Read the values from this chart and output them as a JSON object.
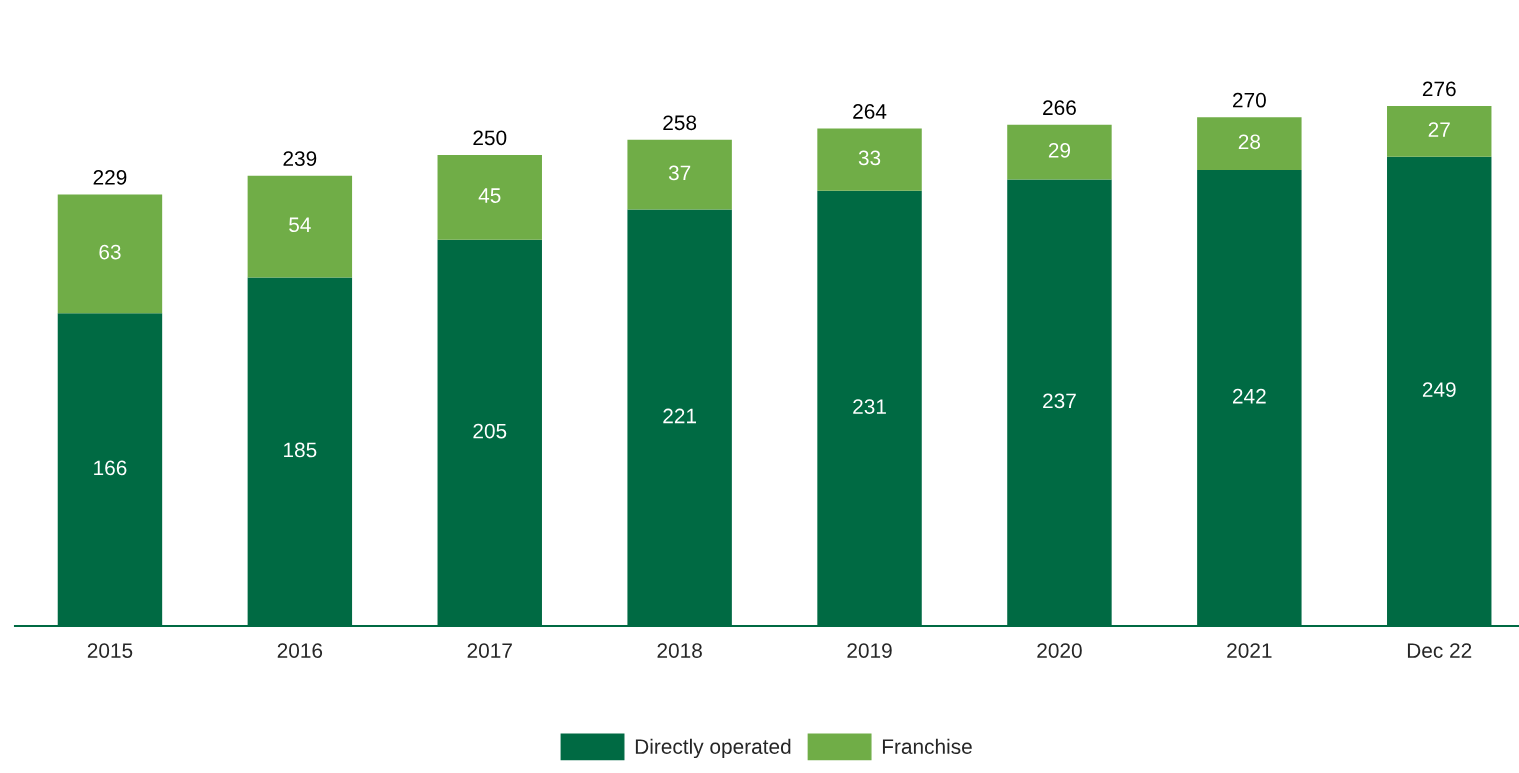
{
  "chart_data": {
    "type": "bar",
    "stacked": true,
    "data_labels": true,
    "legend": "bottom",
    "grid": false,
    "categories": [
      "2015",
      "2016",
      "2017",
      "2018",
      "2019",
      "2020",
      "2021",
      "Dec 22"
    ],
    "series": [
      {
        "name": "Directly operated",
        "color": "#006a43",
        "values": [
          166,
          185,
          205,
          221,
          231,
          237,
          242,
          249
        ]
      },
      {
        "name": "Franchise",
        "color": "#70ad47",
        "values": [
          63,
          54,
          45,
          37,
          33,
          29,
          28,
          27
        ]
      }
    ],
    "totals": [
      "229",
      "239",
      "250",
      "258",
      "264",
      "266",
      "270",
      "276"
    ]
  }
}
